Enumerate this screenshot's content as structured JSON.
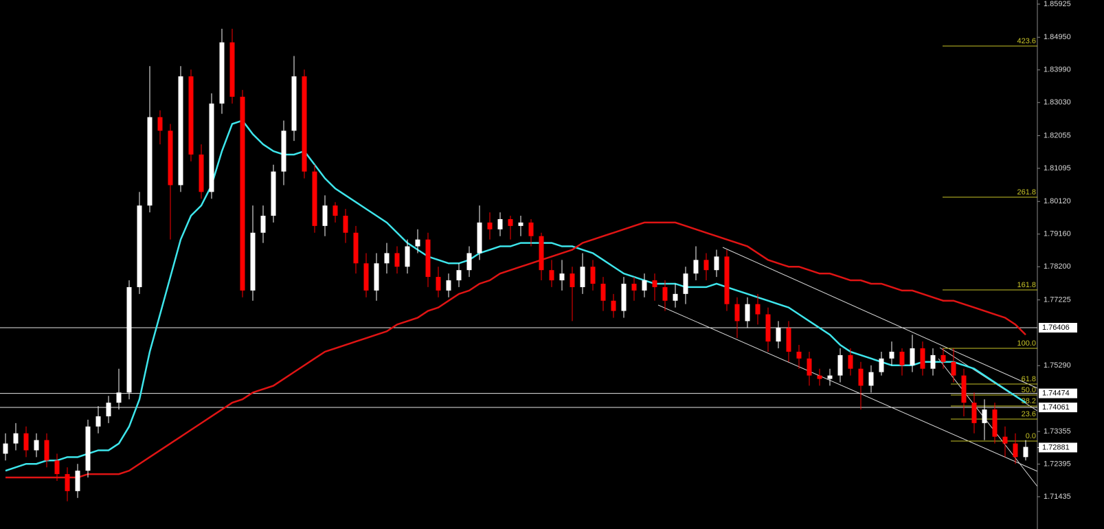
{
  "chart_data": {
    "type": "candlestick",
    "up_color": "#ffffff",
    "down_color": "#ff0000",
    "ylim": [
      1.70869,
      1.86046
    ],
    "yticks": [
      1.85925,
      {
        "value": 1.8495,
        "label": "1.84950"
      },
      {
        "value": 1.8399,
        "label": "1.83990"
      },
      {
        "value": 1.8303,
        "label": "1.83030"
      },
      1.82055,
      1.81095,
      {
        "value": 1.8012,
        "label": "1.80120"
      },
      {
        "value": 1.7916,
        "label": "1.79160"
      },
      {
        "value": 1.782,
        "label": "1.78200"
      },
      1.77225,
      {
        "value": 1.7529,
        "label": "1.75290"
      },
      1.73355,
      1.72395,
      1.71435
    ],
    "levels": [
      {
        "value": 1.76406,
        "line": true
      },
      {
        "value": 1.74474,
        "line": true
      },
      {
        "value": 1.74061,
        "line": true
      },
      {
        "value": 1.72881,
        "line": false
      }
    ],
    "fibonacci": {
      "color": "#c8c428",
      "levels": [
        {
          "value": 1.84692,
          "label": "423.6"
        },
        {
          "value": 1.80246,
          "label": "261.8"
        },
        {
          "value": 1.77518,
          "label": "161.8"
        },
        {
          "value": 1.758,
          "label": "100.0"
        },
        {
          "value": 1.74749,
          "label": "61.8"
        },
        {
          "value": 1.74426,
          "label": "50.0"
        },
        {
          "value": 1.74103,
          "label": "38.2"
        },
        {
          "value": 1.73719,
          "label": "23.6"
        },
        {
          "value": 1.73072,
          "label": "0.0"
        }
      ]
    },
    "open": [
      1.727,
      1.73,
      1.733,
      1.728,
      1.731,
      1.725,
      1.721,
      1.716,
      1.722,
      1.735,
      1.738,
      1.742,
      1.745,
      1.776,
      1.8,
      1.826,
      1.822,
      1.806,
      1.838,
      1.815,
      1.804,
      1.83,
      1.848,
      1.832,
      1.775,
      1.792,
      1.797,
      1.81,
      1.822,
      1.838,
      1.81,
      1.794,
      1.8,
      1.797,
      1.792,
      1.783,
      1.775,
      1.783,
      1.786,
      1.782,
      1.788,
      1.79,
      1.779,
      1.775,
      1.778,
      1.781,
      1.786,
      1.795,
      1.793,
      1.796,
      1.794,
      1.795,
      1.791,
      1.781,
      1.778,
      1.78,
      1.776,
      1.782,
      1.777,
      1.772,
      1.769,
      1.777,
      1.775,
      1.778,
      1.776,
      1.772,
      1.774,
      1.78,
      1.784,
      1.781,
      1.785,
      1.771,
      1.766,
      1.771,
      1.768,
      1.76,
      1.764,
      1.757,
      1.755,
      1.75,
      1.749,
      1.75,
      1.756,
      1.752,
      1.747,
      1.751,
      1.755,
      1.757,
      1.753,
      1.758,
      1.752,
      1.756,
      1.754,
      1.75,
      1.742,
      1.736,
      1.74,
      1.732,
      1.73,
      1.726
    ],
    "high": [
      1.733,
      1.736,
      1.735,
      1.733,
      1.733,
      1.727,
      1.723,
      1.724,
      1.737,
      1.741,
      1.744,
      1.752,
      1.778,
      1.804,
      1.841,
      1.828,
      1.824,
      1.841,
      1.84,
      1.818,
      1.833,
      1.852,
      1.852,
      1.834,
      1.8,
      1.8,
      1.812,
      1.825,
      1.844,
      1.84,
      1.812,
      1.803,
      1.801,
      1.799,
      1.794,
      1.786,
      1.786,
      1.789,
      1.788,
      1.79,
      1.793,
      1.792,
      1.782,
      1.78,
      1.783,
      1.788,
      1.8,
      1.798,
      1.798,
      1.797,
      1.797,
      1.796,
      1.792,
      1.784,
      1.784,
      1.782,
      1.786,
      1.784,
      1.779,
      1.774,
      1.779,
      1.779,
      1.78,
      1.78,
      1.778,
      1.777,
      1.782,
      1.788,
      1.786,
      1.787,
      1.787,
      1.773,
      1.773,
      1.774,
      1.77,
      1.766,
      1.766,
      1.759,
      1.757,
      1.752,
      1.752,
      1.758,
      1.758,
      1.754,
      1.753,
      1.757,
      1.76,
      1.758,
      1.762,
      1.76,
      1.758,
      1.758,
      1.758,
      1.752,
      1.745,
      1.743,
      1.742,
      1.735,
      1.733,
      1.731
    ],
    "low": [
      1.725,
      1.728,
      1.726,
      1.726,
      1.723,
      1.719,
      1.713,
      1.714,
      1.72,
      1.733,
      1.736,
      1.74,
      1.743,
      1.774,
      1.798,
      1.818,
      1.79,
      1.804,
      1.813,
      1.802,
      1.802,
      1.827,
      1.83,
      1.773,
      1.772,
      1.789,
      1.795,
      1.806,
      1.819,
      1.808,
      1.792,
      1.791,
      1.795,
      1.789,
      1.78,
      1.773,
      1.772,
      1.78,
      1.78,
      1.78,
      1.786,
      1.776,
      1.773,
      1.773,
      1.776,
      1.779,
      1.784,
      1.79,
      1.791,
      1.79,
      1.791,
      1.788,
      1.778,
      1.776,
      1.775,
      1.766,
      1.774,
      1.775,
      1.769,
      1.767,
      1.767,
      1.772,
      1.773,
      1.772,
      1.769,
      1.77,
      1.771,
      1.778,
      1.778,
      1.779,
      1.769,
      1.761,
      1.764,
      1.765,
      1.757,
      1.758,
      1.754,
      1.752,
      1.747,
      1.747,
      1.747,
      1.748,
      1.75,
      1.74,
      1.745,
      1.75,
      1.753,
      1.75,
      1.751,
      1.75,
      1.75,
      1.752,
      1.748,
      1.738,
      1.733,
      1.731,
      1.73,
      1.726,
      1.724,
      1.725
    ],
    "close": [
      1.73,
      1.733,
      1.728,
      1.731,
      1.725,
      1.721,
      1.716,
      1.722,
      1.735,
      1.738,
      1.742,
      1.745,
      1.776,
      1.8,
      1.826,
      1.822,
      1.806,
      1.838,
      1.815,
      1.804,
      1.83,
      1.848,
      1.832,
      1.775,
      1.792,
      1.797,
      1.81,
      1.822,
      1.838,
      1.81,
      1.794,
      1.8,
      1.797,
      1.792,
      1.783,
      1.775,
      1.783,
      1.786,
      1.782,
      1.788,
      1.79,
      1.779,
      1.775,
      1.778,
      1.781,
      1.786,
      1.795,
      1.793,
      1.796,
      1.794,
      1.795,
      1.791,
      1.781,
      1.778,
      1.78,
      1.776,
      1.782,
      1.777,
      1.772,
      1.769,
      1.777,
      1.775,
      1.778,
      1.776,
      1.772,
      1.774,
      1.78,
      1.784,
      1.781,
      1.785,
      1.771,
      1.766,
      1.771,
      1.768,
      1.76,
      1.764,
      1.757,
      1.755,
      1.75,
      1.749,
      1.75,
      1.756,
      1.752,
      1.747,
      1.751,
      1.755,
      1.757,
      1.753,
      1.758,
      1.752,
      1.756,
      1.754,
      1.75,
      1.742,
      1.736,
      1.74,
      1.732,
      1.73,
      1.726,
      1.729
    ],
    "moving_averages": [
      {
        "color": "#3ee6ec",
        "values": [
          1.722,
          1.723,
          1.724,
          1.724,
          1.725,
          1.725,
          1.726,
          1.726,
          1.727,
          1.728,
          1.728,
          1.73,
          1.735,
          1.743,
          1.757,
          1.768,
          1.779,
          1.79,
          1.797,
          1.8,
          1.806,
          1.816,
          1.824,
          1.825,
          1.821,
          1.818,
          1.816,
          1.815,
          1.815,
          1.816,
          1.812,
          1.808,
          1.805,
          1.803,
          1.801,
          1.799,
          1.797,
          1.795,
          1.792,
          1.789,
          1.787,
          1.785,
          1.784,
          1.783,
          1.783,
          1.784,
          1.786,
          1.787,
          1.788,
          1.788,
          1.789,
          1.789,
          1.789,
          1.789,
          1.788,
          1.788,
          1.787,
          1.786,
          1.784,
          1.782,
          1.78,
          1.779,
          1.778,
          1.777,
          1.777,
          1.777,
          1.776,
          1.776,
          1.776,
          1.777,
          1.776,
          1.775,
          1.774,
          1.773,
          1.772,
          1.771,
          1.77,
          1.768,
          1.766,
          1.764,
          1.762,
          1.759,
          1.757,
          1.756,
          1.755,
          1.754,
          1.753,
          1.753,
          1.753,
          1.754,
          1.754,
          1.754,
          1.754,
          1.753,
          1.752,
          1.75,
          1.748,
          1.746,
          1.744,
          1.742
        ]
      },
      {
        "color": "#e01414",
        "values": [
          1.72,
          1.72,
          1.72,
          1.72,
          1.72,
          1.72,
          1.72,
          1.72,
          1.721,
          1.721,
          1.721,
          1.721,
          1.722,
          1.724,
          1.726,
          1.728,
          1.73,
          1.732,
          1.734,
          1.736,
          1.738,
          1.74,
          1.742,
          1.743,
          1.745,
          1.746,
          1.747,
          1.749,
          1.751,
          1.753,
          1.755,
          1.757,
          1.758,
          1.759,
          1.76,
          1.761,
          1.762,
          1.763,
          1.765,
          1.766,
          1.767,
          1.769,
          1.77,
          1.772,
          1.774,
          1.775,
          1.777,
          1.778,
          1.78,
          1.781,
          1.782,
          1.783,
          1.784,
          1.785,
          1.786,
          1.787,
          1.789,
          1.79,
          1.791,
          1.792,
          1.793,
          1.794,
          1.795,
          1.795,
          1.795,
          1.795,
          1.794,
          1.793,
          1.792,
          1.791,
          1.79,
          1.789,
          1.788,
          1.786,
          1.784,
          1.783,
          1.782,
          1.782,
          1.781,
          1.78,
          1.78,
          1.779,
          1.778,
          1.778,
          1.777,
          1.777,
          1.776,
          1.775,
          1.775,
          1.774,
          1.773,
          1.772,
          1.772,
          1.771,
          1.77,
          1.769,
          1.768,
          1.767,
          1.765,
          1.762
        ]
      }
    ]
  }
}
